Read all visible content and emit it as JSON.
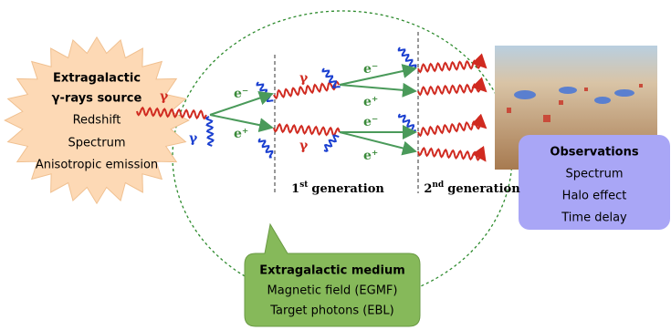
{
  "source": {
    "title": [
      "Extragalactic",
      "γ-rays source"
    ],
    "items": [
      "Redshift",
      "Spectrum",
      "Anisotropic emission"
    ]
  },
  "medium": {
    "title": "Extragalactic medium",
    "items": [
      "Magnetic field (EGMF)",
      "Target photons (EBL)"
    ]
  },
  "observations": {
    "title": "Observations",
    "items": [
      "Spectrum",
      "Halo effect",
      "Time delay"
    ]
  },
  "generations": [
    {
      "number": "1",
      "suffix": "st",
      "label": "generation"
    },
    {
      "number": "2",
      "suffix": "nd",
      "label": "generation"
    }
  ],
  "particles": [
    "γ",
    "γ",
    "e⁻",
    "e⁺",
    "γ",
    "γ",
    "e⁻",
    "e⁺",
    "e⁻",
    "e⁺"
  ]
}
